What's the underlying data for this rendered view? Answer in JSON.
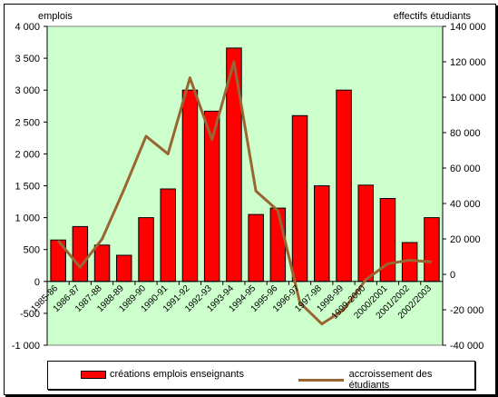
{
  "colors": {
    "plot_bg": "#ccffcc",
    "bar": "#ff0000",
    "line": "#996633"
  },
  "chart_data": {
    "type": "bar",
    "categories": [
      "1985-86",
      "1986-87",
      "1987-88",
      "1988-89",
      "1989-90",
      "1990-91",
      "1991-92",
      "1992-93",
      "1993-94",
      "1994-95",
      "1995-96",
      "1996-97",
      "1997-98",
      "1998-99",
      "1999-2000",
      "2000-2001",
      "2001-2002",
      "2002-2003"
    ],
    "category_labels": [
      "1985-86",
      "1986-87",
      "1987-88",
      "1988-89",
      "1989-90",
      "1990-91",
      "1991-92",
      "1992-93",
      "1993-94",
      "1994-95",
      "1995-96",
      "1996-97",
      "1997-98",
      "1998-99",
      "1999-2000",
      "2000/2001",
      "2001/2002",
      "2002/2003"
    ],
    "series": [
      {
        "name": "créations emplois enseignants",
        "type": "bar",
        "axis": "left",
        "values": [
          650,
          860,
          570,
          410,
          1000,
          1450,
          3000,
          2670,
          3660,
          1050,
          1150,
          2600,
          1500,
          3000,
          1510,
          1300,
          610,
          1000
        ]
      },
      {
        "name": "accroissement des étudiants",
        "type": "line",
        "axis": "right",
        "values": [
          19000,
          4000,
          20000,
          48000,
          78000,
          68000,
          111000,
          76000,
          120000,
          47000,
          36000,
          -16000,
          -28000,
          -20000,
          -3000,
          6000,
          8000,
          7000
        ]
      }
    ],
    "ylabel_left": "emplois",
    "ylabel_right": "effectifs étudiants",
    "ylim_left": [
      -1000,
      4000
    ],
    "ylim_right": [
      -40000,
      140000
    ],
    "yticks_left": [
      -1000,
      -500,
      0,
      500,
      1000,
      1500,
      2000,
      2500,
      3000,
      3500,
      4000
    ],
    "yticks_right": [
      -40000,
      -20000,
      0,
      20000,
      40000,
      60000,
      80000,
      100000,
      120000,
      140000
    ],
    "ytick_labels_left": [
      "-1 000",
      "-500",
      "0",
      "500",
      "1 000",
      "1 500",
      "2 000",
      "2 500",
      "3 000",
      "3 500",
      "4 000"
    ],
    "ytick_labels_right": [
      "-40 000",
      "-20 000",
      "0",
      "20 000",
      "40 000",
      "60 000",
      "80 000",
      "100 000",
      "120 000",
      "140 000"
    ],
    "grid": false,
    "legend": "bottom"
  }
}
